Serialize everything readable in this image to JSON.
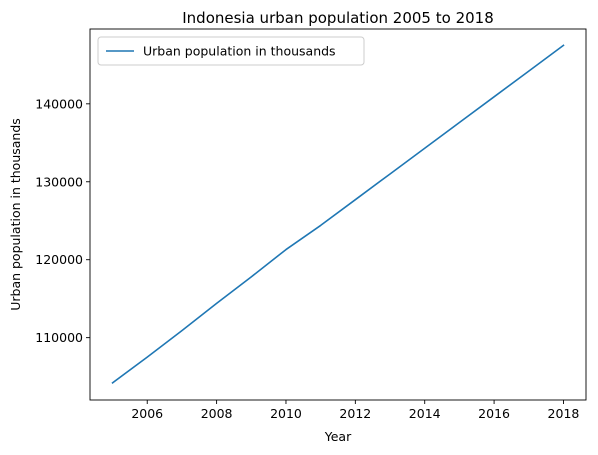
{
  "chart_data": {
    "type": "line",
    "title": "Indonesia urban population 2005 to 2018",
    "xlabel": "Year",
    "ylabel": "Urban population in thousands",
    "xlim": [
      2004.35,
      2018.65
    ],
    "ylim": [
      102000,
      149600
    ],
    "x_ticks": [
      2006,
      2008,
      2010,
      2012,
      2014,
      2016,
      2018
    ],
    "y_ticks": [
      110000,
      120000,
      130000,
      140000
    ],
    "grid": false,
    "legend_position": "upper-left",
    "series": [
      {
        "name": "Urban population in thousands",
        "color": "#1f77b4",
        "x": [
          2005,
          2006,
          2007,
          2008,
          2009,
          2010,
          2011,
          2012,
          2013,
          2014,
          2015,
          2016,
          2017,
          2018
        ],
        "y": [
          104200,
          107500,
          110900,
          114400,
          117800,
          121300,
          124400,
          127700,
          131000,
          134300,
          137600,
          140900,
          144200,
          147500
        ]
      }
    ]
  }
}
